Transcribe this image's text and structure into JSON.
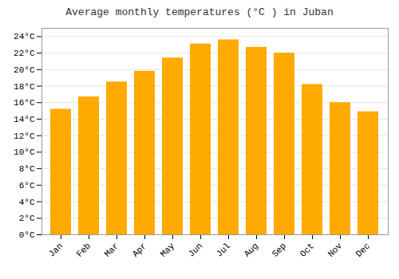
{
  "chart_data": {
    "type": "bar",
    "title": "Average monthly temperatures (°C ) in Juban",
    "categories": [
      "Jan",
      "Feb",
      "Mar",
      "Apr",
      "May",
      "Jun",
      "Jul",
      "Aug",
      "Sep",
      "Oct",
      "Nov",
      "Dec"
    ],
    "values": [
      15.2,
      16.7,
      18.5,
      19.8,
      21.4,
      23.1,
      23.6,
      22.7,
      22.0,
      18.2,
      16.0,
      14.9
    ],
    "color": "#FFAA00",
    "ylim": [
      0,
      25
    ],
    "yticks": [
      {
        "value": 0,
        "label": "0°C"
      },
      {
        "value": 2,
        "label": "2°C"
      },
      {
        "value": 4,
        "label": "4°C"
      },
      {
        "value": 6,
        "label": "6°C"
      },
      {
        "value": 8,
        "label": "8°C"
      },
      {
        "value": 10,
        "label": "10°C"
      },
      {
        "value": 12,
        "label": "12°C"
      },
      {
        "value": 14,
        "label": "14°C"
      },
      {
        "value": 16,
        "label": "16°C"
      },
      {
        "value": 18,
        "label": "18°C"
      },
      {
        "value": 20,
        "label": "20°C"
      },
      {
        "value": 22,
        "label": "22°C"
      },
      {
        "value": 24,
        "label": "24°C"
      }
    ],
    "grid": true
  }
}
